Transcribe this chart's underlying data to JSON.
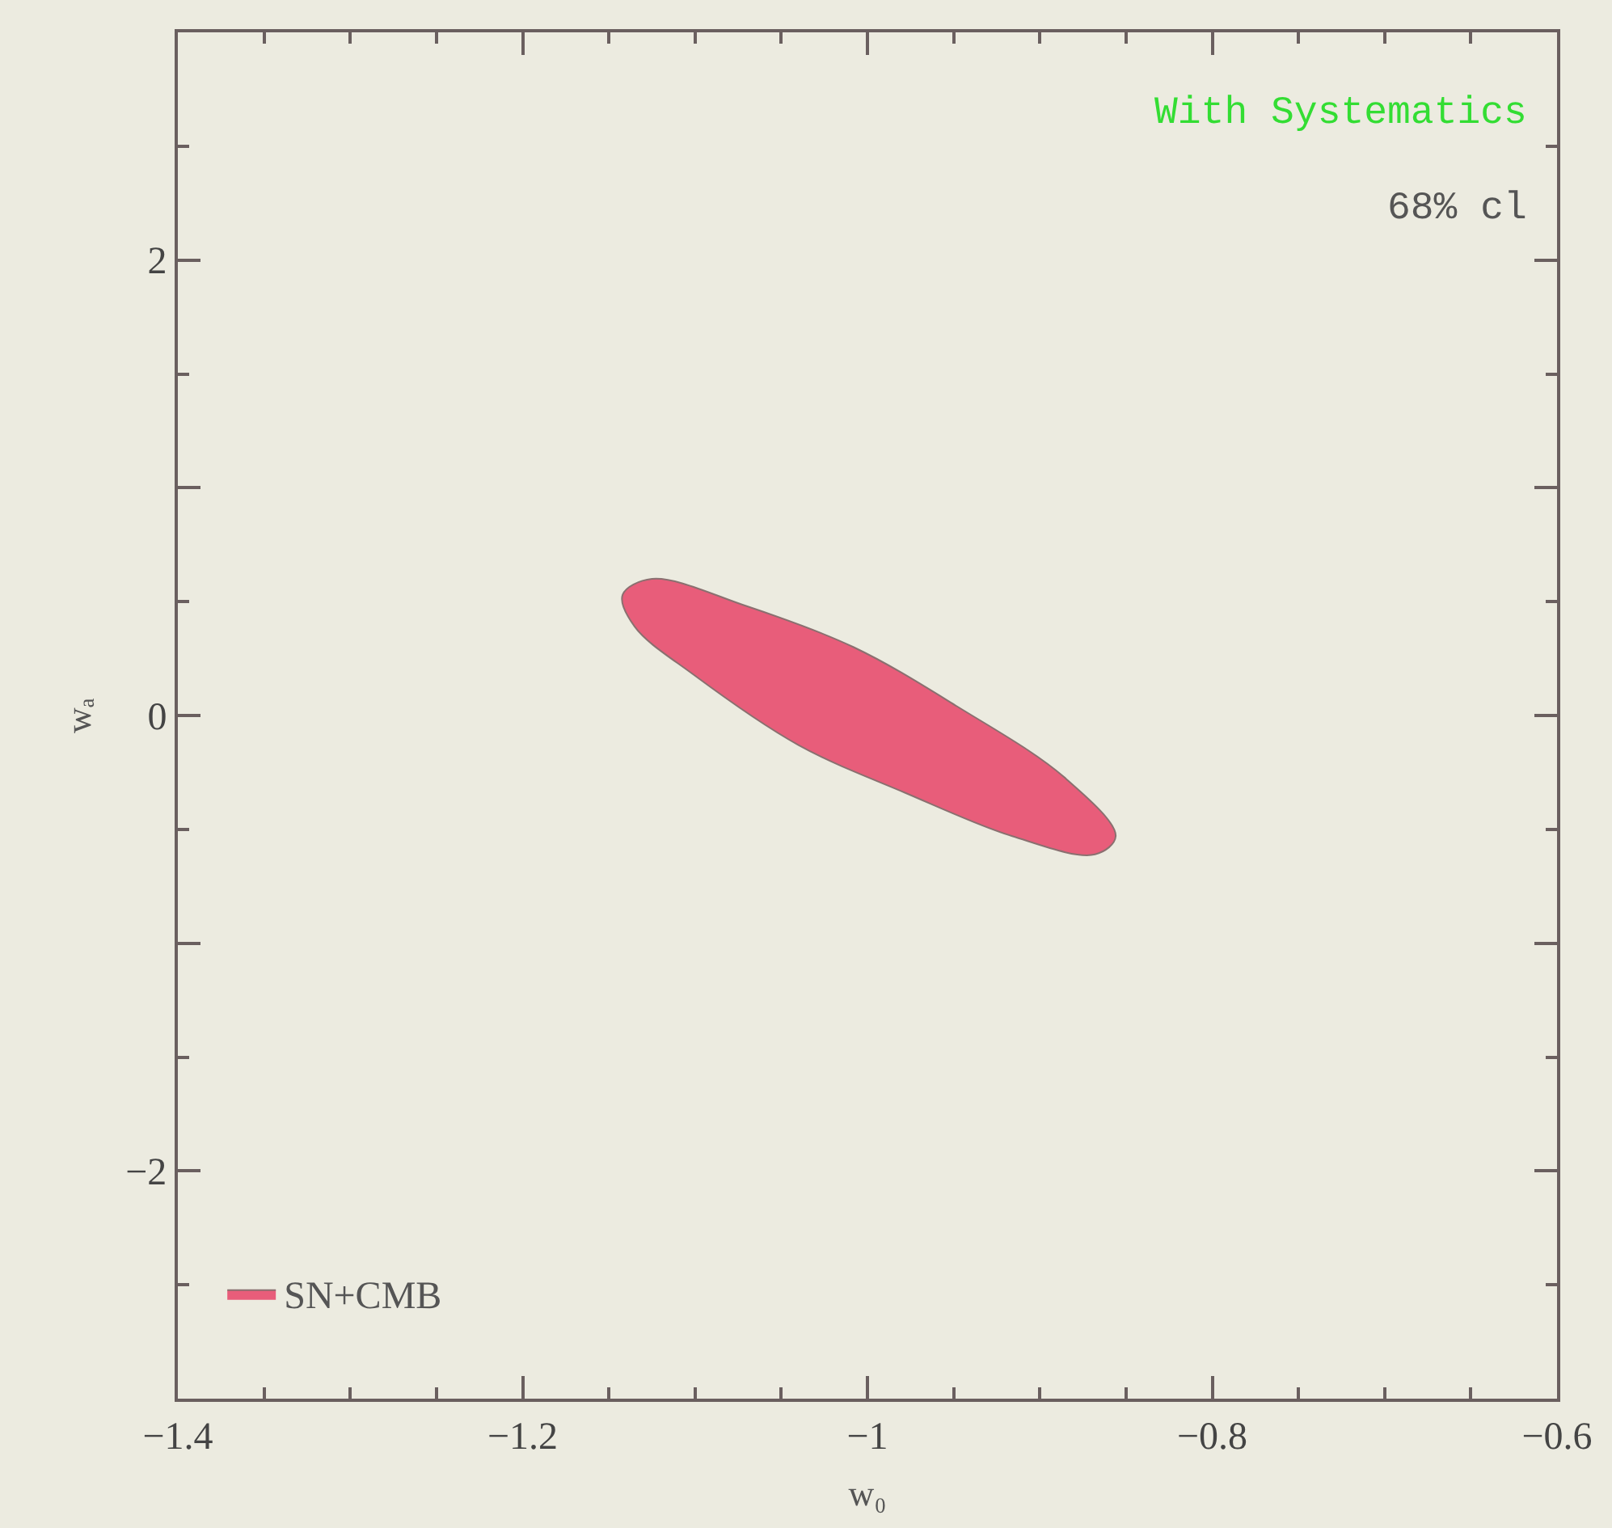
{
  "chart_data": {
    "type": "area",
    "xlabel": "w₀",
    "ylabel": "wₐ",
    "xlim": [
      -1.4,
      -0.6
    ],
    "ylim": [
      -3,
      3
    ],
    "xticks": [
      -1.4,
      -1.2,
      -1,
      -0.8,
      -0.6
    ],
    "yticks": [
      -2,
      {
        "value": -1,
        "label": null
      },
      0,
      {
        "value": 1,
        "label": null
      },
      2
    ],
    "annotations": [
      "With Systematics",
      "68% cl"
    ],
    "legend": "bottom left",
    "grid": false,
    "series": [
      {
        "name": "SN+CMB",
        "color": "#e85d7a",
        "x": [
          -1.142,
          -1.125,
          -1.07,
          -1.008,
          -0.948,
          -0.886,
          -0.856,
          -0.868,
          -0.916,
          -0.978,
          -1.04,
          -1.101,
          -1.135,
          -1.142
        ],
        "values": [
          0.53,
          0.6,
          0.48,
          0.3,
          0.04,
          -0.27,
          -0.53,
          -0.61,
          -0.53,
          -0.34,
          -0.13,
          0.18,
          0.39,
          0.53
        ]
      }
    ]
  }
}
